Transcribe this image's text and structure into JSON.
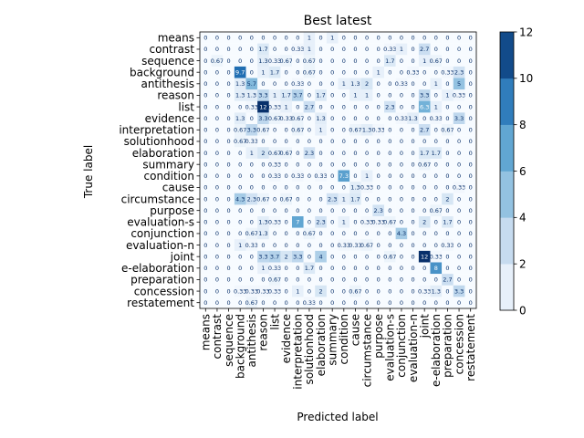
{
  "chart_data": {
    "type": "heatmap",
    "title": "Best latest",
    "xlabel": "Predicted label",
    "ylabel": "True label",
    "labels": [
      "means",
      "contrast",
      "sequence",
      "background",
      "antithesis",
      "reason",
      "list",
      "evidence",
      "interpretation",
      "solutionhood",
      "elaboration",
      "summary",
      "condition",
      "cause",
      "circumstance",
      "purpose",
      "evaluation-s",
      "conjunction",
      "evaluation-n",
      "joint",
      "e-elaboration",
      "preparation",
      "concession",
      "restatement"
    ],
    "matrix": [
      [
        0,
        0,
        0,
        0,
        0,
        0,
        0,
        0,
        0,
        1,
        0,
        1,
        0,
        0,
        0,
        0,
        0,
        0,
        0,
        0,
        0,
        0,
        0,
        0
      ],
      [
        0,
        0,
        0,
        0,
        0,
        1.7,
        0,
        0,
        0.33,
        1,
        0,
        0,
        0,
        0,
        0,
        0,
        0.33,
        1,
        0,
        2.7,
        0,
        0,
        0,
        0
      ],
      [
        0,
        0.67,
        0,
        0,
        0,
        1.3,
        0.33,
        0.67,
        0,
        0.67,
        0,
        0,
        0,
        0,
        0,
        0,
        1.7,
        0,
        0,
        1,
        0.67,
        0,
        0,
        0
      ],
      [
        0,
        0,
        0,
        9.7,
        0,
        1,
        1.7,
        0,
        0,
        0.67,
        0,
        0,
        0,
        0,
        0,
        1,
        0,
        0,
        0.33,
        0,
        0,
        0.33,
        2.3,
        0
      ],
      [
        0,
        0,
        0,
        1.3,
        5.7,
        0,
        0,
        0,
        0.33,
        0,
        0,
        0,
        1,
        1.3,
        2,
        0,
        0,
        0.33,
        0,
        0,
        1,
        0,
        5,
        0
      ],
      [
        0,
        0,
        0,
        1.3,
        1.3,
        3.3,
        1,
        1.7,
        3.7,
        0,
        1.7,
        0,
        0,
        1,
        1,
        0,
        0,
        0,
        0,
        3.3,
        0,
        1,
        0.33,
        0
      ],
      [
        0,
        0,
        0,
        0,
        0.33,
        12,
        0.33,
        1,
        0,
        2.7,
        0,
        0,
        0,
        0,
        0,
        0,
        2.3,
        0,
        0,
        6.3,
        1,
        0,
        0,
        0
      ],
      [
        0,
        0,
        0,
        1.3,
        0,
        3.3,
        0.67,
        0.33,
        0.67,
        0,
        1.3,
        0,
        0,
        0,
        0,
        0,
        0,
        0.33,
        1.3,
        0,
        0.33,
        0,
        3.3,
        0
      ],
      [
        0,
        0,
        0,
        0.67,
        3.3,
        0.67,
        0,
        0,
        0.67,
        0,
        1,
        0,
        0,
        0.67,
        1.3,
        0.33,
        0,
        0,
        0,
        2.7,
        0,
        0.67,
        0,
        0
      ],
      [
        0,
        0,
        0,
        0.67,
        0.33,
        0,
        0,
        0,
        0,
        0,
        0,
        0,
        0,
        0,
        0,
        0,
        0,
        0,
        0,
        0,
        0,
        0,
        0,
        0
      ],
      [
        0,
        0,
        0,
        0,
        1,
        2,
        0.67,
        0.67,
        0,
        2.3,
        0,
        0,
        0,
        0,
        0,
        0,
        0,
        0,
        0,
        1.7,
        1.7,
        0,
        0,
        0
      ],
      [
        0,
        0,
        0,
        0,
        0,
        0,
        0.33,
        0,
        0,
        0,
        0,
        0,
        0,
        0,
        0,
        0,
        0,
        0,
        0,
        0.67,
        0,
        0,
        0,
        0
      ],
      [
        0,
        0,
        0,
        0,
        0,
        0,
        0.33,
        0,
        0.33,
        0,
        0.33,
        0,
        7.3,
        0,
        1,
        0,
        0,
        0,
        0,
        0,
        0,
        0,
        0,
        0
      ],
      [
        0,
        0,
        0,
        0,
        0,
        0,
        0,
        0,
        0,
        0,
        0,
        0,
        0,
        1.3,
        0.33,
        0,
        0,
        0,
        0,
        0,
        0,
        0,
        0.33,
        0
      ],
      [
        0,
        0,
        0,
        4.3,
        2.3,
        0.67,
        0,
        0.67,
        0,
        0,
        0,
        2.3,
        1,
        1.7,
        0,
        0,
        0,
        0,
        0,
        0,
        0,
        2,
        0,
        0
      ],
      [
        0,
        0,
        0,
        0,
        0,
        0,
        0,
        0,
        0,
        0,
        0,
        0,
        0,
        0,
        0,
        2.3,
        0,
        0,
        0,
        0,
        0.67,
        0,
        0,
        0
      ],
      [
        0,
        0,
        0,
        0,
        0,
        1.3,
        0.33,
        0,
        7,
        0,
        2.3,
        0,
        1,
        0,
        0.33,
        0.33,
        0.67,
        0,
        0,
        2,
        0,
        1.7,
        0,
        0
      ],
      [
        0,
        0,
        0,
        0,
        0.67,
        1.3,
        0,
        0,
        0,
        0.67,
        0,
        0,
        0,
        0,
        0,
        0,
        0,
        4.3,
        0,
        0,
        0,
        0,
        0,
        0
      ],
      [
        0,
        0,
        0,
        1,
        0.33,
        0,
        0,
        0,
        0,
        0,
        0,
        0,
        0.33,
        0.33,
        0.67,
        0,
        0,
        0,
        0,
        0,
        0,
        0.33,
        0,
        0
      ],
      [
        0,
        0,
        0,
        0,
        0,
        3.3,
        3.7,
        2,
        3.3,
        0,
        4,
        0,
        0,
        0,
        0,
        0,
        0.67,
        0,
        0,
        12,
        0.33,
        0,
        0,
        0
      ],
      [
        0,
        0,
        0,
        0,
        0,
        1,
        0.33,
        0,
        0,
        1.7,
        0,
        0,
        0,
        0,
        0,
        0,
        0,
        0,
        0,
        0,
        8,
        0,
        0,
        0
      ],
      [
        0,
        0,
        0,
        0,
        0,
        0,
        0.67,
        0,
        0,
        0,
        0,
        0,
        0,
        0,
        0,
        0,
        0,
        0,
        0,
        0,
        0,
        2.7,
        0,
        0
      ],
      [
        0,
        0,
        0,
        0.33,
        0.33,
        0.33,
        0.33,
        0,
        1,
        0,
        2,
        0,
        0,
        0.67,
        0,
        0,
        0,
        0,
        0,
        0.33,
        1.3,
        0,
        3.3,
        0
      ],
      [
        0,
        0,
        0,
        0,
        0.67,
        0,
        0,
        0,
        0,
        0.33,
        0,
        0,
        0,
        0,
        0,
        0,
        0,
        0,
        0,
        0,
        0,
        0,
        0,
        0
      ]
    ],
    "colorbar": {
      "min": 0,
      "max": 12,
      "ticks": [
        0,
        2,
        4,
        6,
        8,
        10,
        12
      ]
    },
    "colormap": "Blues",
    "colors": {
      "low": "#f7fbff",
      "high": "#08306b",
      "text_light": "#ffffff",
      "text_dark": "#08306b"
    }
  }
}
